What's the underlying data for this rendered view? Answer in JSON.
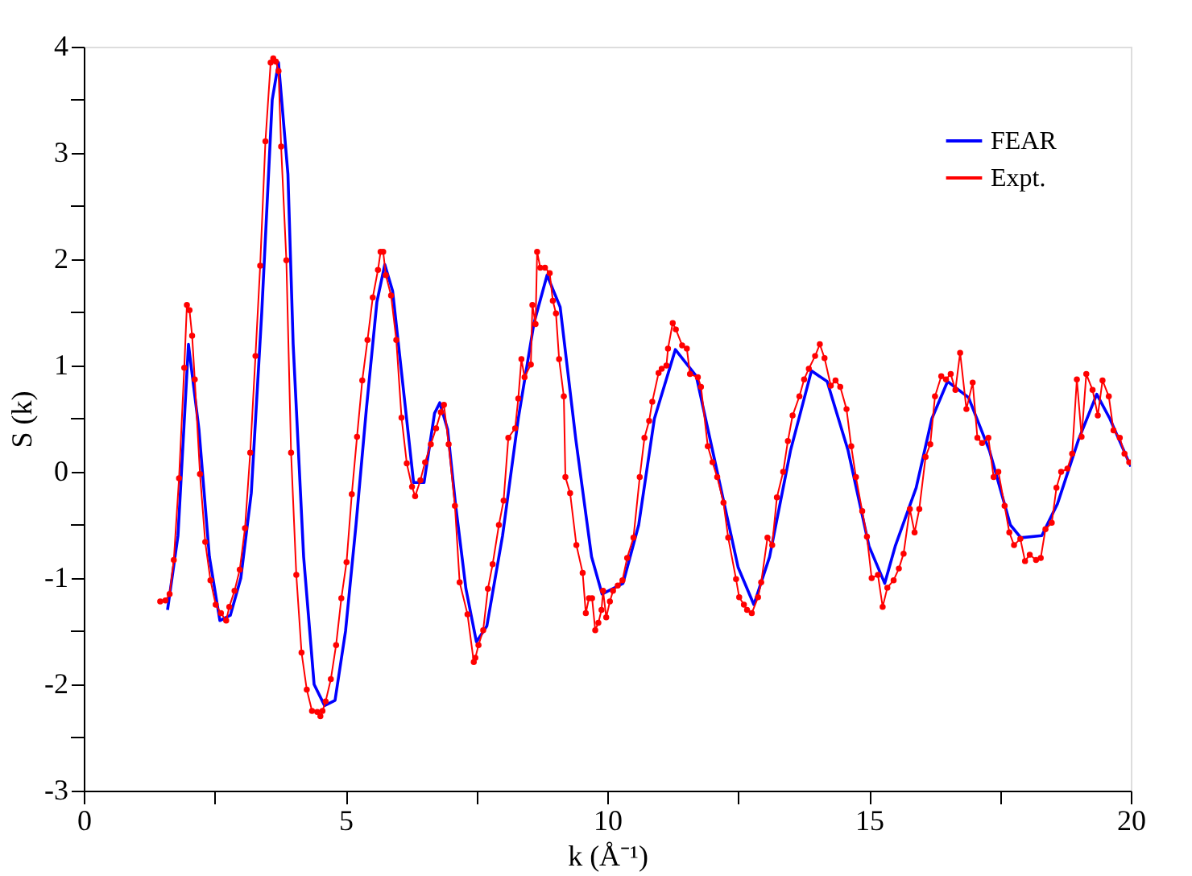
{
  "chart_data": {
    "type": "line",
    "xlabel": "k (Å⁻¹)",
    "ylabel": "S (k)",
    "xlim": [
      0,
      20
    ],
    "xticks": [
      0,
      {
        "value": 2.5,
        "label": null
      },
      5,
      {
        "value": 7.5,
        "label": null
      },
      10,
      {
        "value": 12.5,
        "label": null
      },
      15,
      {
        "value": 17.5,
        "label": null
      },
      20
    ],
    "ylim": [
      -3,
      4
    ],
    "yticks": [
      -3,
      {
        "value": -2.5,
        "label": null
      },
      -2,
      {
        "value": -1.5,
        "label": null
      },
      -1,
      {
        "value": -0.5,
        "label": null
      },
      0,
      {
        "value": 0.5,
        "label": null
      },
      1,
      {
        "value": 1.5,
        "label": null
      },
      2,
      {
        "value": 2.5,
        "label": null
      },
      3,
      {
        "value": 3.5,
        "label": null
      },
      4
    ],
    "grid": false,
    "legend": "top right",
    "line_style": "solid",
    "series": [
      {
        "name": "FEAR",
        "color": "#0000ff",
        "marker": "none",
        "x": [
          1.6,
          1.8,
          2.0,
          2.2,
          2.4,
          2.6,
          2.8,
          3.0,
          3.2,
          3.4,
          3.6,
          3.72,
          3.9,
          4.0,
          4.2,
          4.4,
          4.6,
          4.8,
          5.0,
          5.2,
          5.4,
          5.6,
          5.75,
          5.9,
          6.1,
          6.3,
          6.5,
          6.7,
          6.8,
          6.95,
          7.1,
          7.3,
          7.5,
          7.7,
          8.0,
          8.3,
          8.6,
          8.85,
          9.1,
          9.4,
          9.7,
          9.9,
          10.3,
          10.6,
          10.9,
          11.3,
          11.7,
          12.1,
          12.5,
          12.8,
          13.1,
          13.5,
          13.9,
          14.2,
          14.6,
          15.0,
          15.3,
          15.5,
          15.9,
          16.2,
          16.5,
          16.9,
          17.3,
          17.7,
          17.9,
          18.3,
          18.6,
          19.0,
          19.35,
          19.6,
          20.0
        ],
        "values": [
          -1.3,
          -0.6,
          1.2,
          0.4,
          -0.8,
          -1.4,
          -1.35,
          -1.0,
          -0.2,
          1.5,
          3.5,
          3.85,
          2.8,
          1.2,
          -0.8,
          -2.0,
          -2.2,
          -2.15,
          -1.5,
          -0.5,
          0.6,
          1.6,
          1.95,
          1.7,
          0.8,
          -0.1,
          -0.1,
          0.55,
          0.65,
          0.4,
          -0.3,
          -1.1,
          -1.6,
          -1.45,
          -0.6,
          0.5,
          1.4,
          1.85,
          1.55,
          0.3,
          -0.8,
          -1.15,
          -1.05,
          -0.5,
          0.5,
          1.15,
          0.9,
          0.0,
          -0.9,
          -1.25,
          -0.8,
          0.2,
          0.95,
          0.85,
          0.2,
          -0.7,
          -1.05,
          -0.7,
          -0.15,
          0.5,
          0.85,
          0.7,
          0.2,
          -0.5,
          -0.62,
          -0.6,
          -0.3,
          0.3,
          0.73,
          0.5,
          0.05
        ]
      },
      {
        "name": "Expt.",
        "color": "#ff0000",
        "marker": "circle",
        "x": [
          1.46,
          1.56,
          1.64,
          1.72,
          1.82,
          1.92,
          1.97,
          2.02,
          2.07,
          2.12,
          2.22,
          2.32,
          2.42,
          2.52,
          2.62,
          2.72,
          2.78,
          2.88,
          2.98,
          3.08,
          3.18,
          3.28,
          3.37,
          3.47,
          3.57,
          3.62,
          3.67,
          3.72,
          3.77,
          3.87,
          3.96,
          4.06,
          4.16,
          4.26,
          4.36,
          4.46,
          4.52,
          4.56,
          4.62,
          4.72,
          4.82,
          4.92,
          5.02,
          5.12,
          5.22,
          5.32,
          5.42,
          5.52,
          5.62,
          5.67,
          5.72,
          5.77,
          5.87,
          5.97,
          6.07,
          6.17,
          6.27,
          6.33,
          6.43,
          6.52,
          6.63,
          6.73,
          6.82,
          6.88,
          6.97,
          7.09,
          7.18,
          7.33,
          7.45,
          7.48,
          7.54,
          7.63,
          7.72,
          7.81,
          7.93,
          8.02,
          8.11,
          8.24,
          8.3,
          8.36,
          8.42,
          8.54,
          8.57,
          8.63,
          8.66,
          8.72,
          8.81,
          8.9,
          8.96,
          9.02,
          9.08,
          9.17,
          9.2,
          9.29,
          9.41,
          9.53,
          9.59,
          9.65,
          9.71,
          9.77,
          9.83,
          9.89,
          9.92,
          9.98,
          10.05,
          10.11,
          10.2,
          10.29,
          10.38,
          10.5,
          10.62,
          10.71,
          10.8,
          10.86,
          10.98,
          11.04,
          11.13,
          11.16,
          11.25,
          11.31,
          11.43,
          11.52,
          11.58,
          11.73,
          11.79,
          11.92,
          12.01,
          12.1,
          12.22,
          12.31,
          12.46,
          12.52,
          12.61,
          12.67,
          12.76,
          12.88,
          12.94,
          13.06,
          13.15,
          13.24,
          13.36,
          13.45,
          13.54,
          13.67,
          13.76,
          13.85,
          13.97,
          14.06,
          14.15,
          14.27,
          14.36,
          14.45,
          14.57,
          14.66,
          14.75,
          14.87,
          14.96,
          15.05,
          15.17,
          15.26,
          15.35,
          15.47,
          15.57,
          15.66,
          15.78,
          15.87,
          15.96,
          16.08,
          16.17,
          16.26,
          16.38,
          16.47,
          16.56,
          16.65,
          16.74,
          16.86,
          16.98,
          17.07,
          17.16,
          17.28,
          17.38,
          17.47,
          17.59,
          17.68,
          17.77,
          17.89,
          17.98,
          18.07,
          18.19,
          18.28,
          18.37,
          18.49,
          18.58,
          18.67,
          18.79,
          18.88,
          18.97,
          19.06,
          19.15,
          19.27,
          19.37,
          19.46,
          19.58,
          19.67,
          19.79,
          19.88,
          19.97
        ],
        "values": [
          -1.22,
          -1.21,
          -1.15,
          -0.83,
          -0.06,
          0.98,
          1.57,
          1.52,
          1.28,
          0.87,
          -0.02,
          -0.66,
          -1.02,
          -1.25,
          -1.33,
          -1.4,
          -1.27,
          -1.12,
          -0.92,
          -0.53,
          0.18,
          1.09,
          1.94,
          3.11,
          3.85,
          3.89,
          3.86,
          3.77,
          3.06,
          1.99,
          0.18,
          -0.97,
          -1.7,
          -2.05,
          -2.25,
          -2.26,
          -2.3,
          -2.25,
          -2.16,
          -1.95,
          -1.63,
          -1.19,
          -0.85,
          -0.21,
          0.33,
          0.86,
          1.24,
          1.64,
          1.9,
          2.07,
          2.07,
          1.85,
          1.66,
          1.24,
          0.51,
          0.08,
          -0.14,
          -0.23,
          -0.08,
          0.09,
          0.26,
          0.41,
          0.56,
          0.63,
          0.26,
          -0.32,
          -1.04,
          -1.34,
          -1.79,
          -1.75,
          -1.63,
          -1.49,
          -1.1,
          -0.87,
          -0.5,
          -0.27,
          0.32,
          0.41,
          0.69,
          1.06,
          0.89,
          1.01,
          1.57,
          1.39,
          2.07,
          1.92,
          1.92,
          1.87,
          1.61,
          1.49,
          1.06,
          0.71,
          -0.05,
          -0.2,
          -0.69,
          -0.95,
          -1.33,
          -1.19,
          -1.19,
          -1.49,
          -1.42,
          -1.3,
          -1.12,
          -1.37,
          -1.22,
          -1.12,
          -1.07,
          -1.02,
          -0.81,
          -0.62,
          -0.05,
          0.32,
          0.48,
          0.66,
          0.93,
          0.97,
          1.0,
          1.16,
          1.4,
          1.34,
          1.19,
          1.16,
          0.92,
          0.89,
          0.8,
          0.24,
          0.09,
          -0.05,
          -0.29,
          -0.62,
          -1.01,
          -1.18,
          -1.25,
          -1.3,
          -1.33,
          -1.18,
          -1.04,
          -0.62,
          -0.69,
          -0.24,
          0.0,
          0.29,
          0.53,
          0.71,
          0.87,
          0.97,
          1.09,
          1.2,
          1.07,
          0.81,
          0.86,
          0.8,
          0.59,
          0.24,
          -0.05,
          -0.37,
          -0.61,
          -1.0,
          -0.97,
          -1.27,
          -1.09,
          -1.02,
          -0.91,
          -0.77,
          -0.35,
          -0.57,
          -0.35,
          0.14,
          0.26,
          0.71,
          0.9,
          0.87,
          0.92,
          0.77,
          1.12,
          0.59,
          0.84,
          0.32,
          0.27,
          0.32,
          -0.05,
          0.0,
          -0.32,
          -0.57,
          -0.69,
          -0.63,
          -0.84,
          -0.78,
          -0.83,
          -0.81,
          -0.54,
          -0.48,
          -0.15,
          0.0,
          0.03,
          0.17,
          0.87,
          0.33,
          0.92,
          0.77,
          0.53,
          0.86,
          0.71,
          0.39,
          0.32,
          0.17,
          0.09
        ]
      }
    ]
  }
}
